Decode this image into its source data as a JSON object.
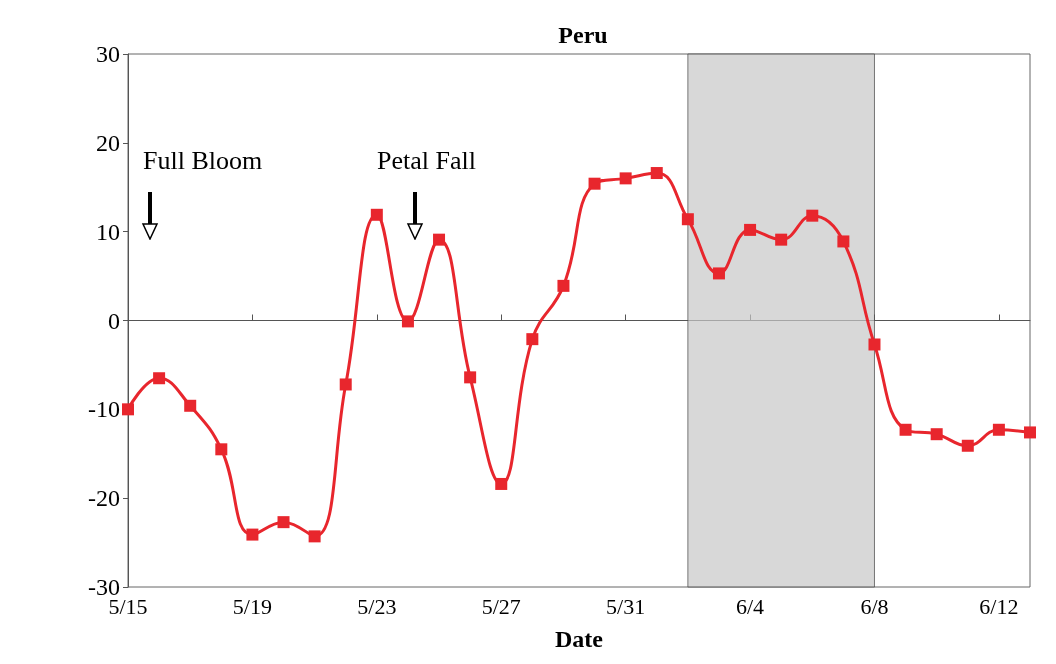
{
  "chart_data": {
    "type": "line",
    "title": "Peru",
    "xlabel": "Date",
    "x": [
      "--05-15",
      "--05-16",
      "--05-17",
      "--05-18",
      "--05-19",
      "--05-20",
      "--05-21",
      "--05-22",
      "--05-23",
      "--05-24",
      "--05-25",
      "--05-26",
      "--05-27",
      "--05-28",
      "--05-29",
      "--05-30",
      "--05-31",
      "--06-01",
      "--06-02",
      "--06-03",
      "--06-04",
      "--06-05",
      "--06-06",
      "--06-07",
      "--06-08",
      "--06-09",
      "--06-10",
      "--06-11",
      "--06-12",
      "--06-13"
    ],
    "series": [
      {
        "color": "#e8262d",
        "values": [
          -10.0,
          -6.5,
          -9.6,
          -14.5,
          -24.1,
          -22.7,
          -24.3,
          -7.2,
          11.9,
          -0.1,
          9.1,
          -6.4,
          -18.4,
          -2.1,
          3.9,
          15.4,
          16.0,
          16.6,
          11.4,
          5.3,
          10.2,
          9.1,
          11.8,
          8.9,
          -2.7,
          -12.3,
          -12.8,
          -14.1,
          -12.3,
          -12.6
        ]
      }
    ],
    "xlim": [
      "--05-15",
      "--06-13"
    ],
    "xticks": [
      {
        "value": "--05-15",
        "label": "5/15"
      },
      {
        "value": "--05-19",
        "label": "5/19"
      },
      {
        "value": "--05-23",
        "label": "5/23"
      },
      {
        "value": "--05-27",
        "label": "5/27"
      },
      {
        "value": "--05-31",
        "label": "5/31"
      },
      {
        "value": "--06-04",
        "label": "6/4"
      },
      {
        "value": "--06-08",
        "label": "6/8"
      },
      {
        "value": "--06-12",
        "label": "6/12"
      }
    ],
    "ylim": [
      -30,
      30
    ],
    "yticks": [
      -30,
      -20,
      -10,
      0,
      10,
      20,
      30
    ],
    "bands": [
      {
        "axis": "x",
        "from": "--06-02",
        "to": "--06-08",
        "color": "#c8c8c8"
      }
    ],
    "annotations": [
      "Full Bloom",
      "Petal Fall"
    ],
    "marker": "square",
    "line_style": "solid"
  }
}
